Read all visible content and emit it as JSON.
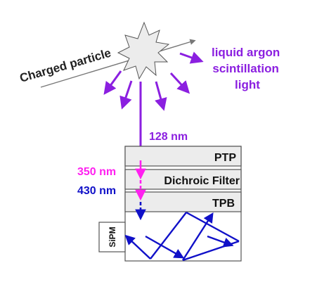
{
  "labels": {
    "particle": "Charged particle",
    "scint_line1": "liquid argon",
    "scint_line2": "scintillation",
    "scint_line3": "light",
    "wl_128": "128 nm",
    "wl_350": "350 nm",
    "wl_430": "430 nm",
    "layer_ptp": "PTP",
    "layer_dichroic": "Dichroic Filter",
    "layer_tpb": "TPB",
    "sipm": "SiPM"
  },
  "colors": {
    "purple": "#8B1FE0",
    "magenta": "#FF20F0",
    "blue": "#1010C8",
    "gray_fill": "#ECECEC",
    "outline": "#555555",
    "track": "#777777"
  },
  "icons": {
    "star": "scintillation-burst-icon"
  }
}
